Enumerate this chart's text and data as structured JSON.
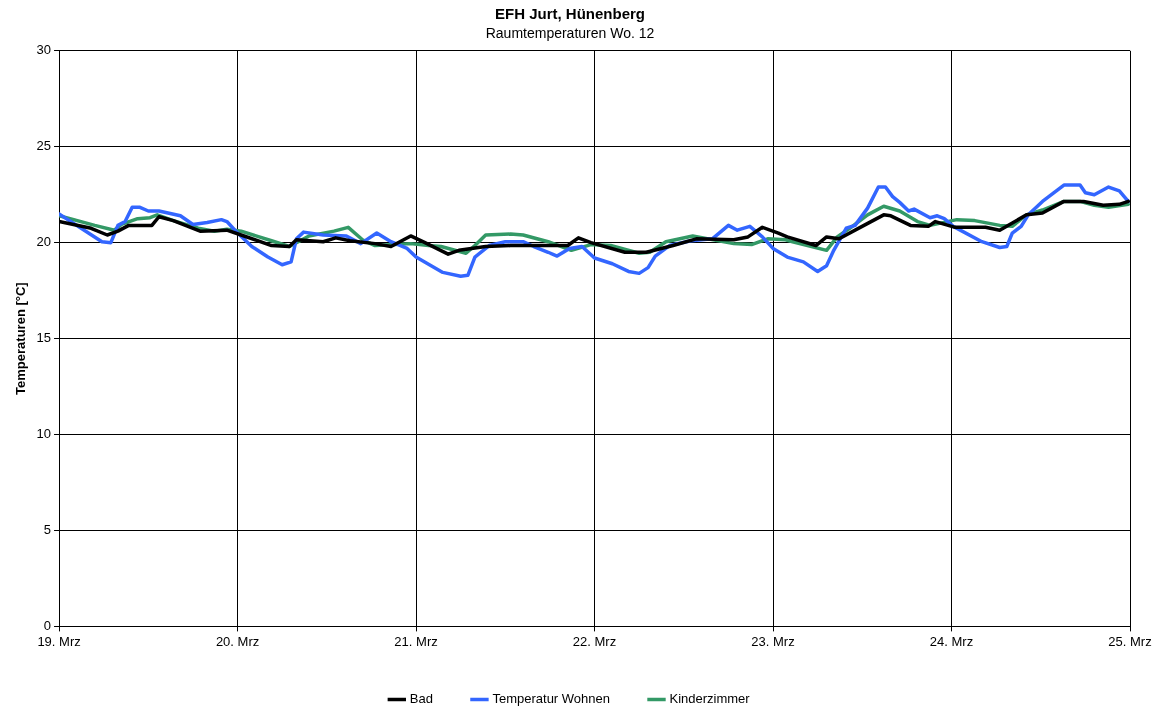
{
  "chart_data": {
    "type": "line",
    "title": "EFH Jurt, Hünenberg",
    "subtitle": "Raumtemperaturen Wo. 12",
    "ylabel": "Temperaturen [°C]",
    "xlim": [
      "--03-19",
      "--03-25"
    ],
    "xticks": [
      {
        "value": "--03-19",
        "label": "19. Mrz"
      },
      {
        "value": "--03-20",
        "label": "20. Mrz"
      },
      {
        "value": "--03-21",
        "label": "21. Mrz"
      },
      {
        "value": "--03-22",
        "label": "22. Mrz"
      },
      {
        "value": "--03-23",
        "label": "23. Mrz"
      },
      {
        "value": "--03-24",
        "label": "24. Mrz"
      },
      {
        "value": "--03-25",
        "label": "25. Mrz"
      }
    ],
    "ylim": [
      0,
      30
    ],
    "yticks": [
      0,
      5,
      10,
      15,
      20,
      25,
      30
    ],
    "grid": true,
    "legend": "bottom",
    "marker": "none",
    "line_style": "solid",
    "series": [
      {
        "name": "Bad",
        "color": "#000000",
        "x": [
          "--03-19T00:00",
          "--03-19T04:19",
          "--03-19T06:29",
          "--03-19T07:55",
          "--03-19T09:22",
          "--03-19T12:29",
          "--03-19T13:26",
          "--03-19T15:22",
          "--03-19T18:58",
          "--03-19T22:34",
          "--03-20T00:29",
          "--03-20T04:34",
          "--03-20T06:58",
          "--03-20T07:55",
          "--03-20T11:31",
          "--03-20T13:12",
          "--03-20T15:07",
          "--03-20T18:29",
          "--03-20T20:38",
          "--03-20T23:17",
          "--03-21T01:12",
          "--03-21T04:19",
          "--03-21T05:46",
          "--03-21T09:22",
          "--03-21T12:43",
          "--03-21T17:17",
          "--03-21T20:24",
          "--03-21T21:50",
          "--03-21T23:31",
          "--03-22T04:05",
          "--03-22T06:58",
          "--03-22T10:34",
          "--03-22T13:41",
          "--03-22T18:43",
          "--03-22T20:38",
          "--03-22T22:34",
          "--03-23T00:43",
          "--03-23T01:55",
          "--03-23T05:46",
          "--03-23T07:12",
          "--03-23T08:53",
          "--03-23T12:14",
          "--03-23T14:53",
          "--03-23T15:50",
          "--03-23T18:29",
          "--03-23T20:53",
          "--03-23T21:50",
          "--03-24T00:29",
          "--03-24T04:34",
          "--03-24T06:29",
          "--03-24T10:05",
          "--03-24T12:14",
          "--03-24T15:07",
          "--03-24T17:46",
          "--03-24T20:24",
          "--03-24T22:34",
          "--03-24T23:46"
        ],
        "values": [
          21.1,
          20.75,
          20.4,
          20.6,
          20.9,
          20.9,
          21.35,
          21.15,
          20.6,
          20.65,
          20.4,
          19.85,
          19.8,
          20.15,
          20.05,
          20.25,
          20.1,
          19.95,
          19.8,
          20.35,
          20.0,
          19.4,
          19.6,
          19.8,
          19.85,
          19.85,
          19.85,
          20.25,
          20.0,
          19.5,
          19.5,
          19.85,
          20.2,
          20.15,
          20.3,
          20.8,
          20.5,
          20.3,
          19.85,
          20.3,
          20.2,
          20.9,
          21.45,
          21.4,
          20.9,
          20.85,
          21.1,
          20.8,
          20.8,
          20.65,
          21.45,
          21.55,
          22.15,
          22.15,
          21.95,
          22.0,
          22.15
        ]
      },
      {
        "name": "Temperatur Wohnen",
        "color": "#3366ff",
        "x": [
          "--03-19T00:00",
          "--03-19T05:46",
          "--03-19T06:58",
          "--03-19T07:55",
          "--03-19T08:53",
          "--03-19T09:50",
          "--03-19T10:48",
          "--03-19T12:00",
          "--03-19T13:26",
          "--03-19T16:19",
          "--03-19T18:00",
          "--03-19T19:55",
          "--03-19T21:50",
          "--03-19T22:34",
          "--03-19T23:46",
          "--03-20T01:55",
          "--03-20T04:05",
          "--03-20T06:00",
          "--03-20T07:12",
          "--03-20T07:55",
          "--03-20T08:53",
          "--03-20T11:31",
          "--03-20T14:38",
          "--03-20T16:34",
          "--03-20T18:43",
          "--03-20T20:38",
          "--03-20T22:48",
          "--03-21T00:00",
          "--03-21T03:36",
          "--03-21T06:00",
          "--03-21T06:58",
          "--03-21T07:55",
          "--03-21T09:50",
          "--03-21T12:00",
          "--03-21T14:24",
          "--03-21T15:50",
          "--03-21T17:46",
          "--03-21T18:58",
          "--03-21T20:38",
          "--03-21T22:19",
          "--03-22T00:00",
          "--03-22T02:24",
          "--03-22T04:34",
          "--03-22T06:00",
          "--03-22T07:12",
          "--03-22T08:10",
          "--03-22T10:05",
          "--03-22T12:58",
          "--03-22T15:50",
          "--03-22T18:00",
          "--03-22T19:12",
          "--03-22T20:53",
          "--03-22T22:34",
          "--03-23T00:00",
          "--03-23T01:55",
          "--03-23T04:05",
          "--03-23T06:00",
          "--03-23T07:12",
          "--03-23T08:10",
          "--03-23T09:50",
          "--03-23T11:02",
          "--03-23T12:43",
          "--03-23T14:10",
          "--03-23T15:07",
          "--03-23T16:05",
          "--03-23T17:02",
          "--03-23T18:14",
          "--03-23T18:58",
          "--03-23T21:07",
          "--03-23T22:05",
          "--03-23T23:02",
          "--03-24T00:14",
          "--03-24T04:05",
          "--03-24T06:29",
          "--03-24T07:26",
          "--03-24T08:10",
          "--03-24T09:22",
          "--03-24T10:19",
          "--03-24T12:14",
          "--03-24T15:07",
          "--03-24T17:17",
          "--03-24T18:00",
          "--03-24T19:12",
          "--03-24T21:07",
          "--03-24T22:34",
          "--03-24T23:46"
        ],
        "values": [
          21.5,
          20.05,
          20.0,
          20.9,
          21.1,
          21.85,
          21.85,
          21.65,
          21.65,
          21.4,
          20.95,
          21.05,
          21.2,
          21.1,
          20.6,
          19.8,
          19.25,
          18.85,
          19.0,
          20.2,
          20.55,
          20.4,
          20.35,
          19.95,
          20.5,
          20.05,
          19.7,
          19.25,
          18.45,
          18.25,
          18.3,
          19.25,
          19.85,
          20.05,
          20.05,
          19.8,
          19.5,
          19.3,
          19.7,
          19.8,
          19.2,
          18.9,
          18.5,
          18.4,
          18.7,
          19.3,
          19.85,
          20.1,
          20.2,
          20.9,
          20.65,
          20.85,
          20.3,
          19.7,
          19.25,
          19.0,
          18.5,
          18.8,
          19.6,
          20.75,
          20.9,
          21.8,
          22.9,
          22.9,
          22.4,
          22.1,
          21.65,
          21.75,
          21.3,
          21.4,
          21.25,
          20.85,
          20.05,
          19.75,
          19.8,
          20.5,
          20.85,
          21.45,
          22.15,
          23.0,
          23.0,
          22.6,
          22.5,
          22.9,
          22.7,
          22.15
        ]
      },
      {
        "name": "Kinderzimmer",
        "color": "#339966",
        "x": [
          "--03-19T00:00",
          "--03-19T04:48",
          "--03-19T07:26",
          "--03-19T08:24",
          "--03-19T10:34",
          "--03-19T12:14",
          "--03-19T13:12",
          "--03-19T15:22",
          "--03-19T18:43",
          "--03-19T20:53",
          "--03-19T22:34",
          "--03-20T00:29",
          "--03-20T04:34",
          "--03-20T06:58",
          "--03-20T07:55",
          "--03-20T09:36",
          "--03-20T12:58",
          "--03-20T14:53",
          "--03-20T16:48",
          "--03-20T18:29",
          "--03-20T21:07",
          "--03-20T23:17",
          "--03-21T01:41",
          "--03-21T03:22",
          "--03-21T06:43",
          "--03-21T07:55",
          "--03-21T09:22",
          "--03-21T12:43",
          "--03-21T14:24",
          "--03-21T17:46",
          "--03-21T20:53",
          "--03-21T23:31",
          "--03-22T02:10",
          "--03-22T06:00",
          "--03-22T07:26",
          "--03-22T09:36",
          "--03-22T13:12",
          "--03-22T18:43",
          "--03-22T21:07",
          "--03-22T23:17",
          "--03-23T01:41",
          "--03-23T02:38",
          "--03-23T07:12",
          "--03-23T08:38",
          "--03-23T10:19",
          "--03-23T12:43",
          "--03-23T14:53",
          "--03-23T17:02",
          "--03-23T19:26",
          "--03-23T21:07",
          "--03-24T00:43",
          "--03-24T03:07",
          "--03-24T06:29",
          "--03-24T08:10",
          "--03-24T10:05",
          "--03-24T12:14",
          "--03-24T15:07",
          "--03-24T17:17",
          "--03-24T19:12",
          "--03-24T21:07",
          "--03-24T23:46"
        ],
        "values": [
          21.4,
          20.9,
          20.65,
          20.95,
          21.25,
          21.3,
          21.45,
          21.15,
          20.75,
          20.6,
          20.7,
          20.6,
          20.1,
          19.8,
          20.0,
          20.35,
          20.6,
          20.8,
          20.15,
          19.85,
          19.9,
          19.95,
          19.85,
          19.8,
          19.45,
          19.85,
          20.4,
          20.45,
          20.4,
          20.05,
          19.6,
          19.9,
          19.85,
          19.45,
          19.5,
          20.05,
          20.35,
          19.95,
          19.9,
          20.2,
          20.15,
          20.05,
          19.6,
          20.3,
          20.75,
          21.45,
          21.9,
          21.65,
          21.1,
          20.9,
          21.2,
          21.15,
          20.9,
          20.85,
          21.45,
          21.7,
          22.15,
          22.15,
          21.95,
          21.85,
          22.0
        ]
      }
    ]
  }
}
